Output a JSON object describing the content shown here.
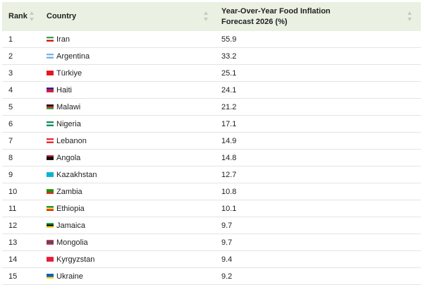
{
  "table": {
    "header": [
      "Rank",
      "Country",
      "Year-Over-Year Food Inflation Forecast 2026 (%)"
    ],
    "rows": [
      [
        1,
        "Iran",
        55.9
      ],
      [
        2,
        "Argentina",
        33.2
      ],
      [
        3,
        "Türkiye",
        25.1
      ],
      [
        4,
        "Haiti",
        24.1
      ],
      [
        5,
        "Malawi",
        21.2
      ],
      [
        6,
        "Nigeria",
        17.1
      ],
      [
        7,
        "Lebanon",
        14.9
      ],
      [
        8,
        "Angola",
        14.8
      ],
      [
        9,
        "Kazakhstan",
        12.7
      ],
      [
        10,
        "Zambia",
        10.8
      ],
      [
        11,
        "Ethiopia",
        10.1
      ],
      [
        12,
        "Jamaica",
        9.7
      ],
      [
        13,
        "Mongolia",
        9.7
      ],
      [
        14,
        "Kyrgyzstan",
        9.4
      ],
      [
        15,
        "Ukraine",
        9.2
      ]
    ]
  }
}
